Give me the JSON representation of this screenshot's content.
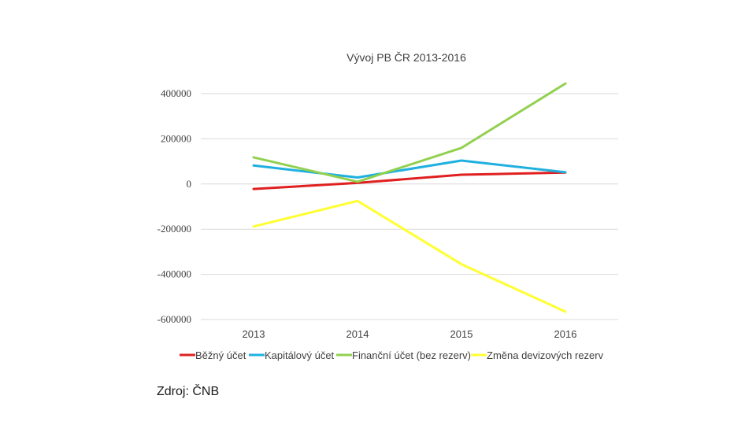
{
  "chart_data": {
    "type": "line",
    "title": "Vývoj PB ČR 2013-2016",
    "categories": [
      "2013",
      "2014",
      "2015",
      "2016"
    ],
    "ylim": [
      -600000,
      400000
    ],
    "yticks": [
      400000,
      200000,
      0,
      -200000,
      -400000,
      -600000
    ],
    "ytick_labels": [
      "400000",
      "200000",
      "0",
      "-200000",
      "-400000",
      "-600000"
    ],
    "grid": true,
    "legend_position": "bottom",
    "series": [
      {
        "name": "Běžný účet",
        "color": "#e02020",
        "values": [
          -22000,
          5000,
          41000,
          51000
        ]
      },
      {
        "name": "Kapitálový účet",
        "color": "#1fb0e0",
        "values": [
          82000,
          29000,
          104000,
          52000
        ]
      },
      {
        "name": "Finanční účet (bez rezerv)",
        "color": "#92d050",
        "values": [
          118000,
          10000,
          160000,
          445000
        ]
      },
      {
        "name": "Změna devizových rezerv",
        "color": "#ffff33",
        "values": [
          -188000,
          -75000,
          -355000,
          -565000
        ]
      }
    ]
  },
  "source_label": "Zdroj: ČNB"
}
